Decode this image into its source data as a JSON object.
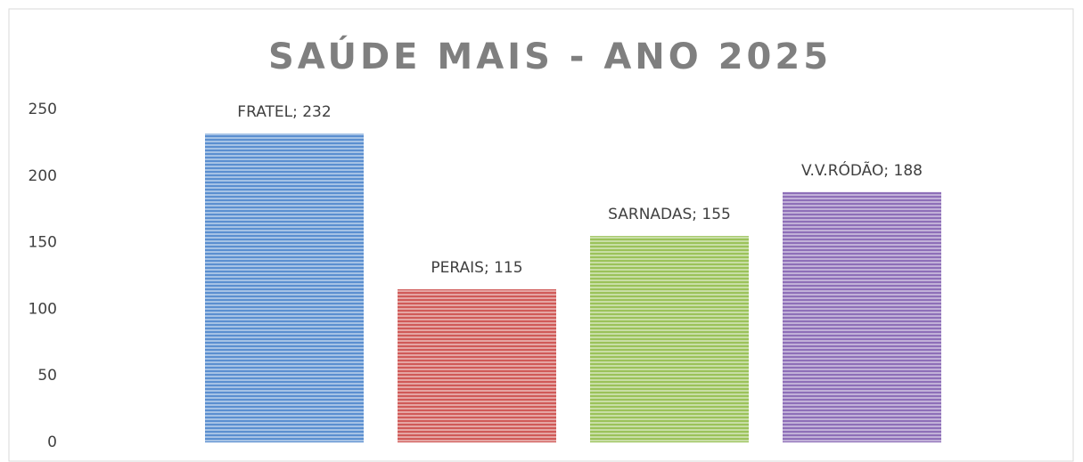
{
  "chart_data": {
    "type": "bar",
    "title": "SAÚDE MAIS - ANO 2025",
    "values": [
      232,
      115,
      155,
      188
    ],
    "value_labels": [
      "FRATEL; 232",
      "PERAIS; 115",
      "SARNADAS; 155",
      "V.V.RÓDÃO; 188"
    ],
    "colors": [
      "#5b8fd0",
      "#d05a58",
      "#9bc25a",
      "#8e6fb8"
    ],
    "ylim": [
      0,
      250
    ],
    "yticks": [
      0,
      50,
      100,
      150,
      200,
      250
    ],
    "grid": false
  }
}
